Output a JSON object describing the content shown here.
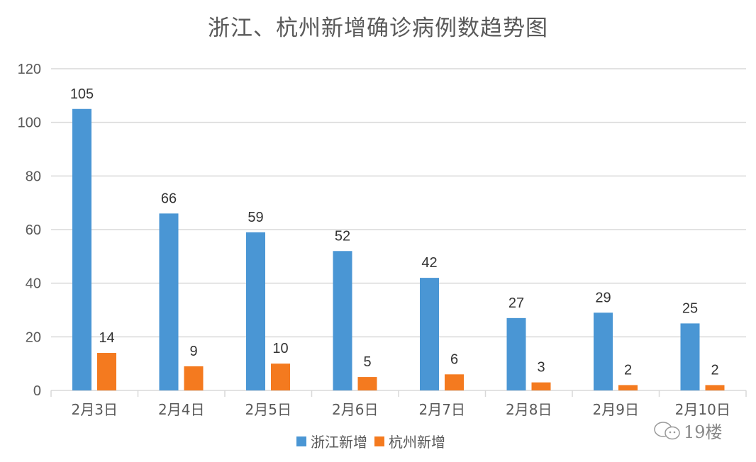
{
  "chart_data": {
    "type": "bar",
    "title": "浙江、杭州新增确诊病例数趋势图",
    "xlabel": "",
    "ylabel": "",
    "categories": [
      "2月3日",
      "2月4日",
      "2月5日",
      "2月6日",
      "2月7日",
      "2月8日",
      "2月9日",
      "2月10日"
    ],
    "series": [
      {
        "name": "浙江新增",
        "color": "#4A96D4",
        "values": [
          105,
          66,
          59,
          52,
          42,
          27,
          29,
          25
        ]
      },
      {
        "name": "杭州新增",
        "color": "#F47A1F",
        "values": [
          14,
          9,
          10,
          5,
          6,
          3,
          2,
          2
        ]
      }
    ],
    "ylim": [
      0,
      120
    ],
    "yticks": [
      0,
      20,
      40,
      60,
      80,
      100,
      120
    ],
    "grid": true,
    "data_labels": true,
    "legend_position": "bottom"
  },
  "watermark": {
    "icon": "wechat-icon",
    "text": "19楼"
  }
}
